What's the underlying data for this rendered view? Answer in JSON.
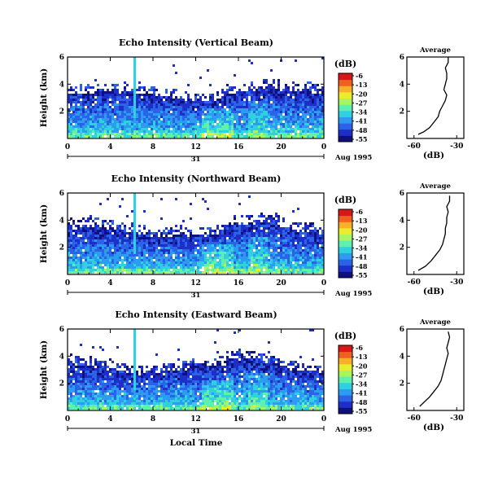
{
  "chart_data": {
    "type": "heatmap",
    "x_tick_labels": [
      "0",
      "4",
      "8",
      "12",
      "16",
      "20",
      "0"
    ],
    "time_axis": {
      "day_label": "31",
      "month_year": "Aug 1995",
      "xlabel": "Local Time"
    },
    "colorbar": {
      "unit": "(dB)",
      "ticks": [
        "-6",
        "-13",
        "-20",
        "-27",
        "-34",
        "-41",
        "-48",
        "-55"
      ]
    },
    "colormap": [
      "#0f0f7d",
      "#1d2fc6",
      "#2a63e8",
      "#2d9cf0",
      "#2fd1e0",
      "#5ff0b0",
      "#a8f560",
      "#ecec2e",
      "#f8b02a",
      "#f06020",
      "#d81818"
    ],
    "panels": [
      {
        "title": "Echo Intensity (Vertical Beam)",
        "ylabel": "Height (km)",
        "y_tick_labels": [
          "6",
          "4",
          "2"
        ],
        "avg_title": "Average",
        "avg_xlabel": "(dB)",
        "avg_x_ticks": [
          "-60",
          "-30"
        ],
        "avg_y_ticks": [
          "6",
          "4",
          "2"
        ],
        "avg_profile": [
          [
            -57,
            0.3
          ],
          [
            -53,
            0.5
          ],
          [
            -49,
            0.8
          ],
          [
            -46,
            1.2
          ],
          [
            -43,
            1.6
          ],
          [
            -42,
            2.0
          ],
          [
            -40,
            2.4
          ],
          [
            -38,
            2.8
          ],
          [
            -37,
            3.2
          ],
          [
            -39,
            3.6
          ],
          [
            -38,
            4.0
          ],
          [
            -37,
            4.4
          ],
          [
            -37,
            4.8
          ],
          [
            -38,
            5.2
          ],
          [
            -36,
            5.6
          ],
          [
            -36,
            6.0
          ]
        ]
      },
      {
        "title": "Echo Intensity (Northward Beam)",
        "ylabel": "Height (km)",
        "y_tick_labels": [
          "6",
          "4",
          "2"
        ],
        "avg_title": "Average",
        "avg_xlabel": "(dB)",
        "avg_x_ticks": [
          "-60",
          "-30"
        ],
        "avg_y_ticks": [
          "6",
          "4",
          "2"
        ],
        "avg_profile": [
          [
            -57,
            0.3
          ],
          [
            -52,
            0.6
          ],
          [
            -48,
            1.0
          ],
          [
            -45,
            1.4
          ],
          [
            -42,
            1.8
          ],
          [
            -40,
            2.2
          ],
          [
            -39,
            2.6
          ],
          [
            -38,
            3.0
          ],
          [
            -38,
            3.4
          ],
          [
            -37,
            3.8
          ],
          [
            -37,
            4.2
          ],
          [
            -36,
            4.6
          ],
          [
            -37,
            5.0
          ],
          [
            -35,
            5.4
          ],
          [
            -35,
            5.8
          ]
        ]
      },
      {
        "title": "Echo Intensity (Eastward Beam)",
        "ylabel": "Height (km)",
        "y_tick_labels": [
          "6",
          "4",
          "2"
        ],
        "avg_title": "Average",
        "avg_xlabel": "(dB)",
        "avg_x_ticks": [
          "-60",
          "-30"
        ],
        "avg_y_ticks": [
          "6",
          "4",
          "2"
        ],
        "avg_profile": [
          [
            -56,
            0.3
          ],
          [
            -53,
            0.6
          ],
          [
            -49,
            1.0
          ],
          [
            -46,
            1.4
          ],
          [
            -43,
            1.8
          ],
          [
            -41,
            2.2
          ],
          [
            -40,
            2.6
          ],
          [
            -39,
            3.0
          ],
          [
            -38,
            3.4
          ],
          [
            -37,
            3.8
          ],
          [
            -36,
            4.2
          ],
          [
            -37,
            4.6
          ],
          [
            -36,
            5.0
          ],
          [
            -35,
            5.4
          ],
          [
            -36,
            5.8
          ]
        ]
      }
    ]
  }
}
